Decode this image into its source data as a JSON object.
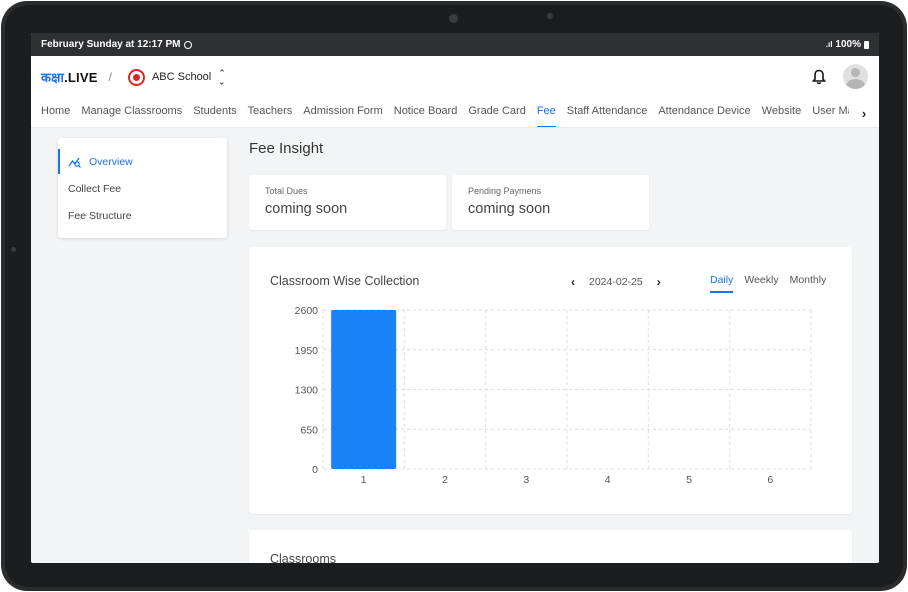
{
  "status_bar": {
    "datetime": "February Sunday at 12:17 PM",
    "battery": "100%"
  },
  "header": {
    "brand_prefix": "कक्षा",
    "brand_suffix": ".LIVE",
    "separator": "/",
    "school_name": "ABC School"
  },
  "nav": {
    "items": [
      {
        "label": "Home",
        "active": false
      },
      {
        "label": "Manage Classrooms",
        "active": false
      },
      {
        "label": "Students",
        "active": false
      },
      {
        "label": "Teachers",
        "active": false
      },
      {
        "label": "Admission Form",
        "active": false
      },
      {
        "label": "Notice Board",
        "active": false
      },
      {
        "label": "Grade Card",
        "active": false
      },
      {
        "label": "Fee",
        "active": true
      },
      {
        "label": "Staff Attendance",
        "active": false
      },
      {
        "label": "Attendance Device",
        "active": false
      },
      {
        "label": "Website",
        "active": false
      },
      {
        "label": "User Manage",
        "active": false
      }
    ]
  },
  "sidebar": {
    "items": [
      {
        "label": "Overview",
        "active": true
      },
      {
        "label": "Collect Fee",
        "active": false
      },
      {
        "label": "Fee Structure",
        "active": false
      }
    ]
  },
  "main": {
    "title": "Fee Insight",
    "stats": [
      {
        "label": "Total Dues",
        "value": "coming soon"
      },
      {
        "label": "Pending Paymens",
        "value": "coming soon"
      }
    ],
    "chart_card": {
      "title": "Classroom Wise Collection",
      "date": "2024-02-25",
      "tabs": [
        {
          "label": "Daily",
          "active": true
        },
        {
          "label": "Weekly",
          "active": false
        },
        {
          "label": "Monthly",
          "active": false
        }
      ]
    },
    "classrooms_title": "Classrooms"
  },
  "colors": {
    "accent": "#1a73e8",
    "bar": "#1a82f7",
    "background": "#f3f4f6"
  },
  "chart_data": {
    "type": "bar",
    "categories": [
      "1",
      "2",
      "3",
      "4",
      "5",
      "6"
    ],
    "values": [
      2600,
      0,
      0,
      0,
      0,
      0
    ],
    "yticks": [
      0,
      650,
      1300,
      1950,
      2600
    ],
    "ylim": [
      0,
      2600
    ],
    "grid": true,
    "title": "",
    "xlabel": "",
    "ylabel": ""
  }
}
